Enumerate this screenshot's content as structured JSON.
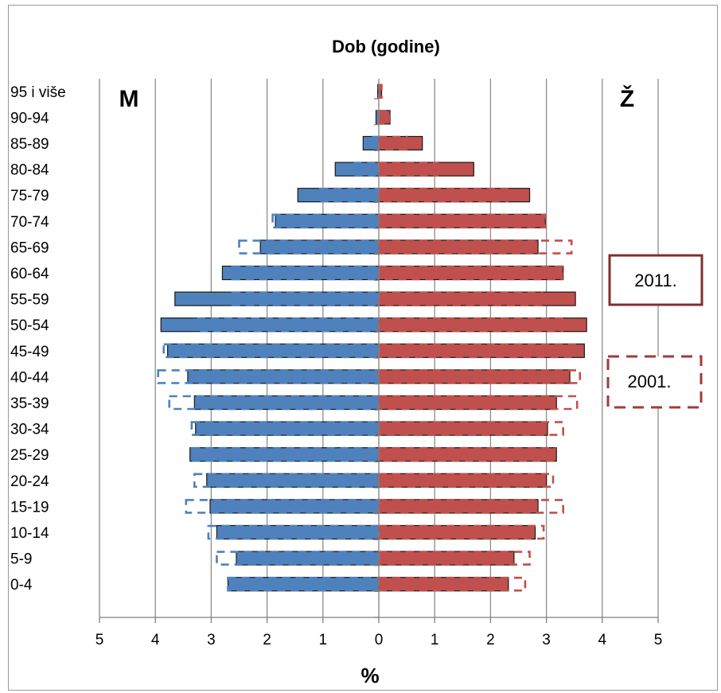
{
  "chart_data": {
    "type": "bar",
    "orientation": "horizontal",
    "title": "Dob (godine)",
    "xlabel": "%",
    "left_label": "M",
    "right_label": "Ž",
    "xlim": [
      -5,
      5
    ],
    "x_tick_labels": [
      "5",
      "4",
      "3",
      "2",
      "1",
      "0",
      "1",
      "2",
      "3",
      "4",
      "5"
    ],
    "categories": [
      "0-4",
      "5-9",
      "10-14",
      "15-19",
      "20-24",
      "25-29",
      "30-34",
      "35-39",
      "40-44",
      "45-49",
      "50-54",
      "55-59",
      "60-64",
      "65-69",
      "70-74",
      "75-79",
      "80-84",
      "85-89",
      "90-94",
      "95 i više"
    ],
    "series": [
      {
        "name": "2011.",
        "sex": "M",
        "style": "solid",
        "color": "#4f81bd",
        "values": [
          2.7,
          2.55,
          2.9,
          3.02,
          3.08,
          3.38,
          3.28,
          3.3,
          3.42,
          3.78,
          3.9,
          3.65,
          2.8,
          2.12,
          1.85,
          1.45,
          0.78,
          0.28,
          0.05,
          0.02
        ]
      },
      {
        "name": "2011.",
        "sex": "Ž",
        "style": "solid",
        "color": "#c0504d",
        "values": [
          2.32,
          2.42,
          2.8,
          2.85,
          3.0,
          3.18,
          3.02,
          3.18,
          3.42,
          3.68,
          3.72,
          3.52,
          3.3,
          2.85,
          2.98,
          2.7,
          1.7,
          0.78,
          0.2,
          0.05
        ]
      },
      {
        "name": "2001.",
        "sex": "M",
        "style": "dashed",
        "color": "#4f81bd",
        "values": [
          2.7,
          2.9,
          3.05,
          3.45,
          3.3,
          3.35,
          3.35,
          3.75,
          3.95,
          3.85,
          3.25,
          2.62,
          2.62,
          2.5,
          1.9,
          1.05,
          0.45,
          0.12,
          0.02,
          0.0
        ]
      },
      {
        "name": "2001.",
        "sex": "Ž",
        "style": "dashed",
        "color": "#c0504d",
        "values": [
          2.62,
          2.7,
          2.95,
          3.3,
          3.12,
          3.15,
          3.3,
          3.55,
          3.6,
          3.55,
          3.28,
          2.92,
          3.28,
          3.45,
          2.98,
          2.3,
          1.05,
          0.5,
          0.18,
          0.05
        ]
      }
    ],
    "legend": [
      {
        "label": "2011.",
        "style": "solid",
        "color": "#7f2f2f"
      },
      {
        "label": "2001.",
        "style": "dashed",
        "color": "#a23a3a"
      }
    ],
    "grid": true
  }
}
